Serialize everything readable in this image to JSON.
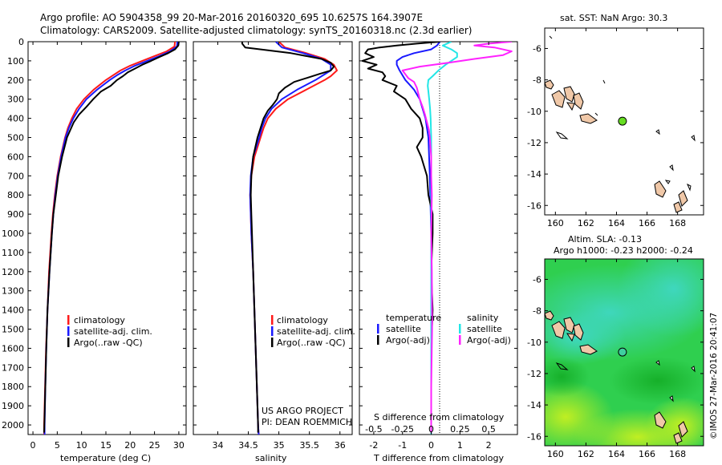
{
  "title": {
    "line1": "Argo profile: AO 5904358_99 20-Mar-2016 20160320_695 10.6257S 164.3907E",
    "line2": "Climatology: CARS2009. Satellite-adjusted climatology: synTS_20160318.nc (2.3d earlier)"
  },
  "depth_ticks": [
    "0",
    "100",
    "200",
    "300",
    "400",
    "500",
    "600",
    "700",
    "800",
    "900",
    "1000",
    "1100",
    "1200",
    "1300",
    "1400",
    "1500",
    "1600",
    "1700",
    "1800",
    "1900",
    "2000"
  ],
  "colors": {
    "climatology": "#ff1a1a",
    "satellite": "#1a1aff",
    "argo": "#000000",
    "sat_diff_T": "#1a1aff",
    "sat_diff_S": "#22e6e6",
    "argo_diff_S": "#ff22ff",
    "land": "#f0c8a8",
    "argo_marker": "#66dd22"
  },
  "chart_data": [
    {
      "type": "line",
      "panel": "temperature",
      "xlabel": "temperature (deg C)",
      "xlim": [
        -1,
        31.5
      ],
      "xticks": [
        "0",
        "5",
        "10",
        "15",
        "20",
        "25",
        "30"
      ],
      "ylim": [
        2050,
        0
      ],
      "legend": [
        "climatology",
        "satellite-adj. clim.",
        "Argo(..raw -QC)"
      ],
      "series": [
        {
          "name": "climatology",
          "depth": [
            0,
            25,
            50,
            75,
            100,
            125,
            150,
            175,
            200,
            250,
            300,
            350,
            400,
            450,
            500,
            600,
            700,
            800,
            900,
            1000,
            1200,
            1400,
            1600,
            1800,
            2000,
            2050
          ],
          "values": [
            29.2,
            29.1,
            27.5,
            25.0,
            22.5,
            20.0,
            18.0,
            16.5,
            15.0,
            12.5,
            10.5,
            9.0,
            8.0,
            7.2,
            6.6,
            5.7,
            5.0,
            4.5,
            4.1,
            3.8,
            3.3,
            3.0,
            2.7,
            2.5,
            2.3,
            2.3
          ]
        },
        {
          "name": "satellite-adj. clim.",
          "depth": [
            0,
            25,
            50,
            75,
            100,
            125,
            150,
            175,
            200,
            250,
            300,
            350,
            400,
            450,
            500,
            600,
            700,
            800,
            900,
            1000,
            1200,
            1400,
            1600,
            1800,
            2000,
            2050
          ],
          "values": [
            29.7,
            29.6,
            28.2,
            26.0,
            23.5,
            21.0,
            19.0,
            17.3,
            15.8,
            13.2,
            11.0,
            9.5,
            8.3,
            7.4,
            6.7,
            5.8,
            5.1,
            4.6,
            4.2,
            3.9,
            3.4,
            3.0,
            2.75,
            2.55,
            2.4,
            2.4
          ]
        },
        {
          "name": "Argo(..raw -QC)",
          "depth": [
            0,
            20,
            40,
            60,
            80,
            100,
            120,
            140,
            160,
            180,
            200,
            230,
            260,
            300,
            340,
            380,
            420,
            460,
            500,
            600,
            700,
            800,
            900,
            1000,
            1200,
            1400,
            1600,
            1800,
            2000,
            2040
          ],
          "values": [
            30.0,
            29.9,
            29.2,
            27.8,
            26.0,
            24.3,
            22.5,
            21.0,
            19.5,
            18.5,
            17.3,
            16.0,
            14.0,
            12.4,
            11.0,
            9.5,
            8.4,
            7.7,
            7.0,
            6.0,
            5.2,
            4.7,
            4.2,
            3.9,
            3.4,
            3.0,
            2.75,
            2.55,
            2.35,
            2.3
          ]
        }
      ]
    },
    {
      "type": "line",
      "panel": "salinity",
      "xlabel": "salinity",
      "xlim": [
        33.6,
        36.2
      ],
      "xticks": [
        "34",
        "34.5",
        "35",
        "35.5",
        "36"
      ],
      "ylim": [
        2050,
        0
      ],
      "legend": [
        "climatology",
        "satellite-adj. clim.",
        "Argo(..raw -QC)"
      ],
      "annotation": [
        "US ARGO PROJECT",
        "PI: DEAN ROEMMICH"
      ],
      "series": [
        {
          "name": "climatology",
          "depth": [
            0,
            30,
            60,
            90,
            120,
            150,
            180,
            200,
            250,
            300,
            350,
            400,
            450,
            500,
            600,
            700,
            800,
            1000,
            1200,
            1500,
            1800,
            2000,
            2050
          ],
          "values": [
            35.0,
            35.1,
            35.45,
            35.75,
            35.9,
            35.95,
            35.85,
            35.75,
            35.45,
            35.15,
            34.95,
            34.82,
            34.75,
            34.7,
            34.6,
            34.55,
            34.53,
            34.55,
            34.58,
            34.61,
            34.64,
            34.66,
            34.67
          ]
        },
        {
          "name": "satellite-adj. clim.",
          "depth": [
            0,
            30,
            60,
            90,
            120,
            150,
            180,
            200,
            250,
            300,
            350,
            400,
            450,
            500,
            600,
            700,
            800,
            1000,
            1200,
            1500,
            1800,
            2000,
            2050
          ],
          "values": [
            34.95,
            35.05,
            35.4,
            35.7,
            35.85,
            35.85,
            35.7,
            35.6,
            35.3,
            35.05,
            34.88,
            34.78,
            34.72,
            34.68,
            34.58,
            34.54,
            34.53,
            34.55,
            34.58,
            34.61,
            34.64,
            34.66,
            34.67
          ]
        },
        {
          "name": "Argo(..raw -QC)",
          "depth": [
            0,
            10,
            30,
            60,
            90,
            110,
            130,
            150,
            170,
            190,
            210,
            240,
            270,
            300,
            330,
            360,
            400,
            450,
            500,
            600,
            700,
            800,
            900,
            1000,
            1200,
            1500,
            1800,
            2000,
            2040
          ],
          "values": [
            34.4,
            34.4,
            34.45,
            35.2,
            35.7,
            35.85,
            35.9,
            35.85,
            35.65,
            35.45,
            35.25,
            35.1,
            35.0,
            34.97,
            34.9,
            34.82,
            34.75,
            34.7,
            34.65,
            34.58,
            34.55,
            34.54,
            34.55,
            34.56,
            34.58,
            34.61,
            34.64,
            34.66,
            34.66
          ]
        }
      ]
    },
    {
      "type": "line",
      "panel": "difference",
      "xlabel": "T difference from climatology",
      "xlim": [
        -2.5,
        3
      ],
      "xticks": [
        "-2",
        "-1",
        "0",
        "1",
        "2"
      ],
      "top_label": "S difference from climatology",
      "top_ticks": [
        "-0.5",
        "-0.25",
        "0",
        "0.25",
        "0.5"
      ],
      "ylim": [
        2050,
        0
      ],
      "legend_left_title": "temperature",
      "legend_right_title": "salinity",
      "legend": [
        "satellite",
        "Argo(-adj)",
        "satellite",
        "Argo(-adj)"
      ],
      "series": [
        {
          "name": "temperature satellite",
          "depth": [
            0,
            20,
            40,
            60,
            80,
            100,
            120,
            150,
            200,
            250,
            300,
            400,
            500,
            700,
            1000,
            1500,
            2000,
            2050
          ],
          "values": [
            0.3,
            0.2,
            0.0,
            -0.6,
            -1.0,
            -1.2,
            -1.2,
            -1.1,
            -0.9,
            -0.6,
            -0.4,
            -0.2,
            -0.1,
            -0.05,
            0.0,
            0.0,
            0.0,
            0.0
          ]
        },
        {
          "name": "temperature Argo(-adj)",
          "depth": [
            0,
            10,
            20,
            30,
            40,
            60,
            80,
            100,
            120,
            140,
            160,
            180,
            200,
            230,
            260,
            300,
            350,
            400,
            450,
            500,
            550,
            600,
            650,
            700,
            800,
            900,
            1000,
            1200,
            1400,
            1600,
            1800,
            2000,
            2040
          ],
          "values": [
            0.3,
            -0.5,
            -1.2,
            -1.8,
            -2.2,
            -2.3,
            -2.0,
            -2.4,
            -1.9,
            -2.2,
            -1.7,
            -1.6,
            -1.7,
            -1.2,
            -1.3,
            -0.9,
            -0.7,
            -0.4,
            -0.3,
            -0.3,
            -0.5,
            -0.35,
            -0.25,
            -0.15,
            -0.1,
            0.05,
            0.05,
            0.0,
            0.05,
            0.0,
            0.0,
            0.0,
            0.0
          ]
        },
        {
          "name": "salinity satellite",
          "depth": [
            0,
            20,
            40,
            60,
            80,
            100,
            120,
            150,
            180,
            200,
            230,
            260,
            300,
            350,
            400,
            500,
            700,
            1000,
            1500,
            2000,
            2050
          ],
          "values": [
            0.7,
            0.4,
            0.7,
            0.9,
            0.9,
            0.7,
            0.5,
            0.25,
            0.05,
            -0.1,
            -0.12,
            -0.1,
            -0.07,
            -0.04,
            -0.02,
            0.0,
            0.0,
            0.0,
            0.0,
            0.0,
            0.0
          ]
        },
        {
          "name": "salinity Argo(-adj)",
          "depth": [
            0,
            10,
            20,
            30,
            50,
            70,
            90,
            110,
            130,
            150,
            170,
            190,
            210,
            240,
            270,
            300,
            340,
            380,
            420,
            460,
            500,
            600,
            700,
            800,
            1000,
            1200,
            1500,
            1800,
            2000,
            2040
          ],
          "values": [
            2.8,
            2.0,
            1.5,
            2.2,
            2.8,
            2.5,
            1.5,
            0.6,
            -0.4,
            -1.0,
            -0.9,
            -0.8,
            -0.6,
            -0.5,
            -0.45,
            -0.4,
            -0.3,
            -0.22,
            -0.15,
            -0.08,
            -0.05,
            0.0,
            0.0,
            0.02,
            0.0,
            0.02,
            0.03,
            0.0,
            0.0,
            0.0
          ]
        }
      ]
    }
  ],
  "map_top": {
    "title": "sat. SST: NaN Argo: 30.3",
    "lon_range": [
      159.3,
      169.7
    ],
    "lat_range": [
      -16.6,
      -4.7
    ],
    "xticks": [
      "160",
      "162",
      "164",
      "166",
      "168"
    ],
    "yticks": [
      "-6",
      "-8",
      "-10",
      "-12",
      "-14",
      "-16"
    ],
    "argo_position": {
      "lon": 164.39,
      "lat": -10.63
    }
  },
  "map_bottom": {
    "title1": "Altim. SLA: -0.13",
    "title2": "Argo h1000: -0.23 h2000: -0.24",
    "lon_range": [
      159.3,
      169.7
    ],
    "lat_range": [
      -16.6,
      -4.7
    ],
    "xticks": [
      "160",
      "162",
      "164",
      "166",
      "168"
    ],
    "yticks": [
      "-6",
      "-8",
      "-10",
      "-12",
      "-14",
      "-16"
    ],
    "argo_position": {
      "lon": 164.39,
      "lat": -10.63
    }
  },
  "footer_stamp": "©IMOS 27-Mar-2016 20:41:07"
}
